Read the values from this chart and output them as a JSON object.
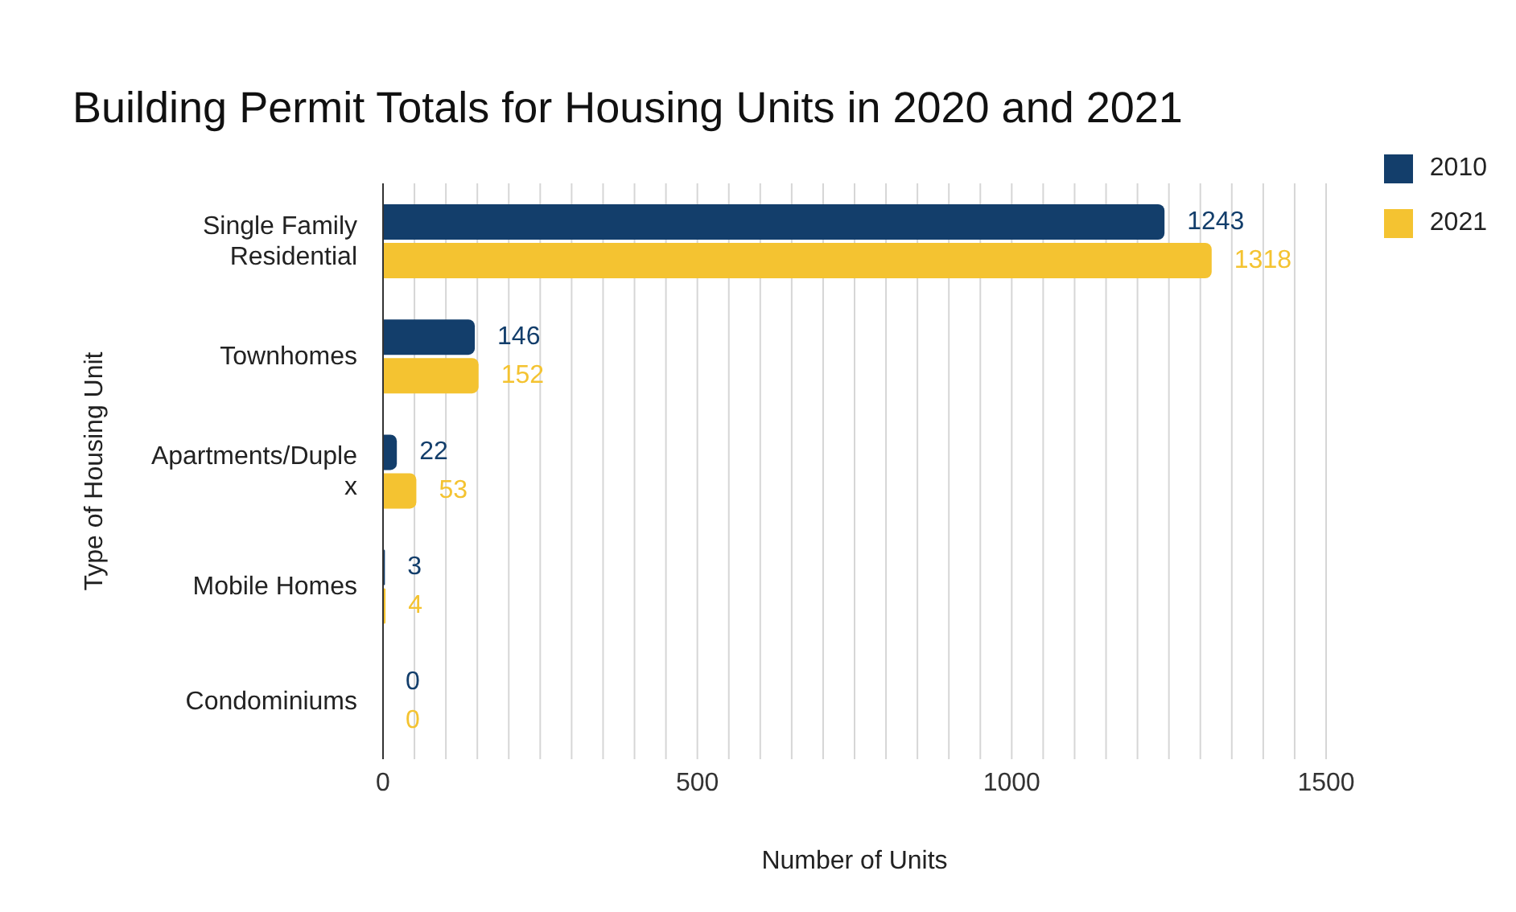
{
  "chart_data": {
    "type": "bar",
    "orientation": "horizontal",
    "title": "Building Permit Totals for Housing Units in 2020 and 2021",
    "xlabel": "Number of Units",
    "ylabel": "Type of Housing Unit",
    "categories": [
      "Single Family Residential",
      "Townhomes",
      "Apartments/Duplex",
      "Mobile Homes",
      "Condominiums"
    ],
    "series": [
      {
        "name": "2010",
        "color": "#133e6b",
        "values": [
          1243,
          146,
          22,
          3,
          0
        ]
      },
      {
        "name": "2021",
        "color": "#f4c331",
        "values": [
          1318,
          152,
          53,
          4,
          0
        ]
      }
    ],
    "xlim": [
      0,
      1500
    ],
    "xticks": [
      0,
      {
        "value": 50,
        "label": null
      },
      {
        "value": 100,
        "label": null
      },
      {
        "value": 150,
        "label": null
      },
      {
        "value": 200,
        "label": null
      },
      {
        "value": 250,
        "label": null
      },
      {
        "value": 300,
        "label": null
      },
      {
        "value": 350,
        "label": null
      },
      {
        "value": 400,
        "label": null
      },
      {
        "value": 450,
        "label": null
      },
      500,
      {
        "value": 550,
        "label": null
      },
      {
        "value": 600,
        "label": null
      },
      {
        "value": 650,
        "label": null
      },
      {
        "value": 700,
        "label": null
      },
      {
        "value": 750,
        "label": null
      },
      {
        "value": 800,
        "label": null
      },
      {
        "value": 850,
        "label": null
      },
      {
        "value": 900,
        "label": null
      },
      {
        "value": 950,
        "label": null
      },
      1000,
      {
        "value": 1050,
        "label": null
      },
      {
        "value": 1100,
        "label": null
      },
      {
        "value": 1150,
        "label": null
      },
      {
        "value": 1200,
        "label": null
      },
      {
        "value": 1250,
        "label": null
      },
      {
        "value": 1300,
        "label": null
      },
      {
        "value": 1350,
        "label": null
      },
      {
        "value": 1400,
        "label": null
      },
      {
        "value": 1450,
        "label": null
      },
      1500
    ],
    "grid": "x",
    "legend": "top right",
    "data_labels": true
  }
}
